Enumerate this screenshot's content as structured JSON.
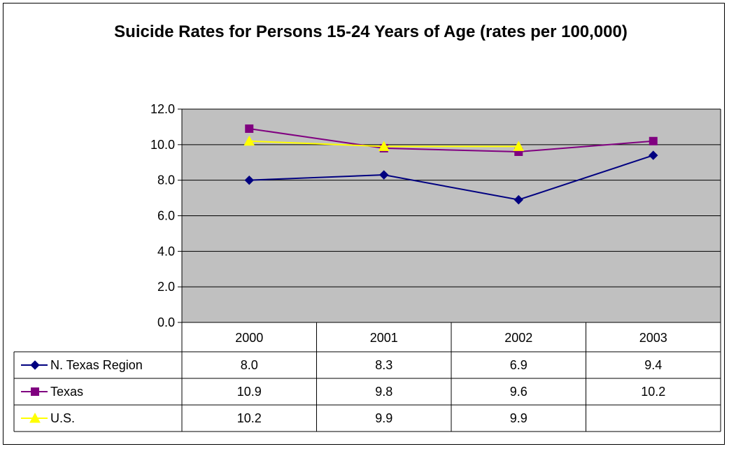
{
  "chart_data": {
    "type": "line",
    "title": "Suicide Rates for Persons 15-24 Years of Age (rates per 100,000)",
    "categories": [
      "2000",
      "2001",
      "2002",
      "2003"
    ],
    "ylim": [
      0,
      12
    ],
    "yticks": [
      "0.0",
      "2.0",
      "4.0",
      "6.0",
      "8.0",
      "10.0",
      "12.0"
    ],
    "grid": true,
    "legend": "data-table-bottom",
    "series": [
      {
        "name": "N. Texas Region",
        "values": [
          8.0,
          8.3,
          6.9,
          9.4
        ],
        "labels": [
          "8.0",
          "8.3",
          "6.9",
          "9.4"
        ],
        "color": "#000080",
        "marker": "diamond"
      },
      {
        "name": "Texas",
        "values": [
          10.9,
          9.8,
          9.6,
          10.2
        ],
        "labels": [
          "10.9",
          "9.8",
          "9.6",
          "10.2"
        ],
        "color": "#800080",
        "marker": "square"
      },
      {
        "name": "U.S.",
        "values": [
          10.2,
          9.9,
          9.9,
          null
        ],
        "labels": [
          "10.2",
          "9.9",
          "9.9",
          ""
        ],
        "color": "#FFFF00",
        "marker": "triangle"
      }
    ],
    "plot_background": "#C0C0C0"
  }
}
